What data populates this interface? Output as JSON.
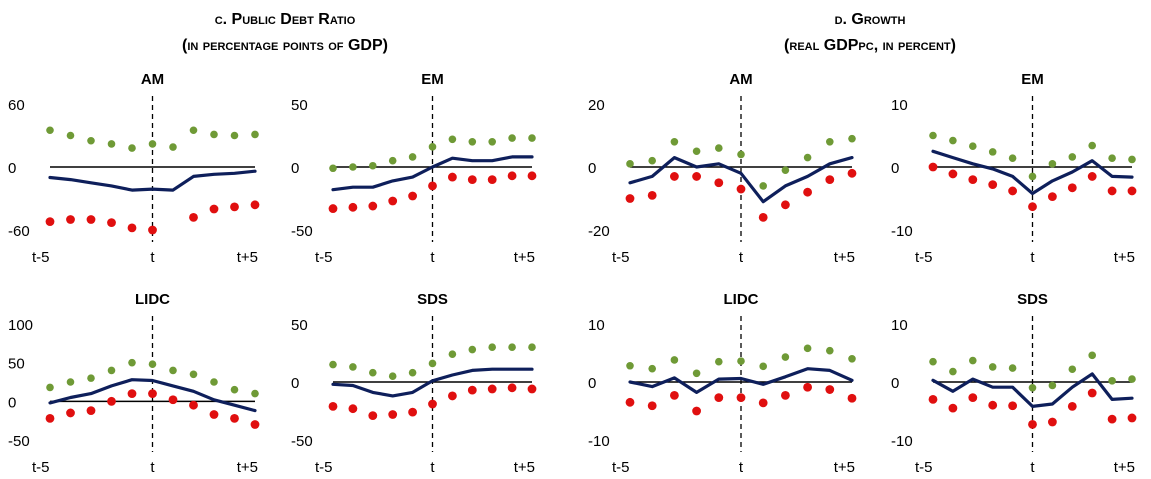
{
  "panels": [
    {
      "title_line1": "c. Public Debt Ratio",
      "title_line2": "(in percentage points of GDP)"
    },
    {
      "title_line1": "d. Growth",
      "title_line2": "(real GDPpc, in percent)"
    }
  ],
  "colors": {
    "line": "#0e1f5b",
    "upper": "#6f9a36",
    "lower": "#e00f0f",
    "axis": "#000000"
  },
  "chart_data": [
    {
      "type": "line",
      "panel": "c",
      "title": "AM",
      "x": [
        "t-5",
        "t-4",
        "t-3",
        "t-2",
        "t-1",
        "t",
        "t+1",
        "t+2",
        "t+3",
        "t+4",
        "t+5"
      ],
      "xticks": [
        "t-5",
        "t",
        "t+5"
      ],
      "yticks": [
        60,
        0,
        -60
      ],
      "ylim": [
        -60,
        60
      ],
      "series": [
        {
          "role": "line",
          "values": [
            -10,
            -12,
            -15,
            -18,
            -22,
            -21,
            -22,
            -9,
            -7,
            -6,
            -4
          ]
        },
        {
          "role": "upper",
          "values": [
            35,
            30,
            25,
            22,
            18,
            22,
            19,
            35,
            31,
            30,
            31
          ]
        },
        {
          "role": "lower",
          "values": [
            -52,
            -50,
            -50,
            -53,
            -58,
            -60,
            null,
            -48,
            -40,
            -38,
            -36
          ]
        }
      ]
    },
    {
      "type": "line",
      "panel": "c",
      "title": "EM",
      "x": [
        "t-5",
        "t-4",
        "t-3",
        "t-2",
        "t-1",
        "t",
        "t+1",
        "t+2",
        "t+3",
        "t+4",
        "t+5"
      ],
      "xticks": [
        "t-5",
        "t",
        "t+5"
      ],
      "yticks": [
        50,
        0,
        -50
      ],
      "ylim": [
        -50,
        50
      ],
      "series": [
        {
          "role": "line",
          "values": [
            -18,
            -16,
            -16,
            -11,
            -8,
            0,
            7,
            5,
            5,
            8,
            8
          ]
        },
        {
          "role": "upper",
          "values": [
            -1,
            0,
            1,
            5,
            8,
            16,
            22,
            20,
            20,
            23,
            23
          ]
        },
        {
          "role": "lower",
          "values": [
            -33,
            -32,
            -31,
            -27,
            -23,
            -15,
            -8,
            -10,
            -10,
            -7,
            -7
          ]
        }
      ]
    },
    {
      "type": "line",
      "panel": "c",
      "title": "LIDC",
      "x": [
        "t-5",
        "t-4",
        "t-3",
        "t-2",
        "t-1",
        "t",
        "t+1",
        "t+2",
        "t+3",
        "t+4",
        "t+5"
      ],
      "xticks": [
        "t-5",
        "t",
        "t+5"
      ],
      "yticks": [
        100,
        50,
        0,
        -50
      ],
      "ylim": [
        -50,
        100
      ],
      "series": [
        {
          "role": "line",
          "values": [
            -2,
            5,
            10,
            20,
            28,
            27,
            20,
            13,
            2,
            -5,
            -12
          ]
        },
        {
          "role": "upper",
          "values": [
            18,
            25,
            30,
            40,
            50,
            48,
            40,
            35,
            25,
            15,
            10
          ]
        },
        {
          "role": "lower",
          "values": [
            -22,
            -15,
            -12,
            0,
            10,
            10,
            2,
            -5,
            -17,
            -22,
            -30
          ]
        }
      ]
    },
    {
      "type": "line",
      "panel": "c",
      "title": "SDS",
      "x": [
        "t-5",
        "t-4",
        "t-3",
        "t-2",
        "t-1",
        "t",
        "t+1",
        "t+2",
        "t+3",
        "t+4",
        "t+5"
      ],
      "xticks": [
        "t-5",
        "t",
        "t+5"
      ],
      "yticks": [
        50,
        0,
        -50
      ],
      "ylim": [
        -50,
        50
      ],
      "series": [
        {
          "role": "line",
          "values": [
            -2,
            -3,
            -9,
            -12,
            -9,
            1,
            6,
            10,
            11,
            11,
            11
          ]
        },
        {
          "role": "upper",
          "values": [
            15,
            13,
            8,
            5,
            8,
            16,
            24,
            28,
            30,
            30,
            30
          ]
        },
        {
          "role": "lower",
          "values": [
            -21,
            -23,
            -29,
            -28,
            -26,
            -19,
            -12,
            -7,
            -6,
            -5,
            -6
          ]
        }
      ]
    },
    {
      "type": "line",
      "panel": "d",
      "title": "AM",
      "x": [
        "t-5",
        "t-4",
        "t-3",
        "t-2",
        "t-1",
        "t",
        "t+1",
        "t+2",
        "t+3",
        "t+4",
        "t+5"
      ],
      "xticks": [
        "t-5",
        "t",
        "t+5"
      ],
      "yticks": [
        20,
        0,
        -20
      ],
      "ylim": [
        -20,
        20
      ],
      "series": [
        {
          "role": "line",
          "values": [
            -5,
            -3,
            3,
            0,
            1,
            -2,
            -11,
            -6,
            -3,
            1,
            3
          ]
        },
        {
          "role": "upper",
          "values": [
            1,
            2,
            8,
            5,
            6,
            4,
            -6,
            -1,
            3,
            8,
            9
          ]
        },
        {
          "role": "lower",
          "values": [
            -10,
            -9,
            -3,
            -3,
            -5,
            -7,
            -16,
            -12,
            -8,
            -4,
            -2
          ]
        }
      ]
    },
    {
      "type": "line",
      "panel": "d",
      "title": "EM",
      "x": [
        "t-5",
        "t-4",
        "t-3",
        "t-2",
        "t-1",
        "t",
        "t+1",
        "t+2",
        "t+3",
        "t+4",
        "t+5"
      ],
      "xticks": [
        "t-5",
        "t",
        "t+5"
      ],
      "yticks": [
        10,
        0,
        -10
      ],
      "ylim": [
        -10,
        10
      ],
      "series": [
        {
          "role": "line",
          "values": [
            2.5,
            1.5,
            0.5,
            -0.3,
            -1.5,
            -4.2,
            -2.2,
            -0.8,
            1,
            -1.5,
            -1.6
          ]
        },
        {
          "role": "upper",
          "values": [
            5,
            4.2,
            3.3,
            2.4,
            1.4,
            -1.5,
            0.5,
            1.6,
            3.4,
            1.4,
            1.2
          ]
        },
        {
          "role": "lower",
          "values": [
            0,
            -1.1,
            -2,
            -2.8,
            -3.8,
            -6.3,
            -4.7,
            -3.3,
            -1.5,
            -3.8,
            -3.8
          ]
        }
      ]
    },
    {
      "type": "line",
      "panel": "d",
      "title": "LIDC",
      "x": [
        "t-5",
        "t-4",
        "t-3",
        "t-2",
        "t-1",
        "t",
        "t+1",
        "t+2",
        "t+3",
        "t+4",
        "t+5"
      ],
      "xticks": [
        "t-5",
        "t",
        "t+5"
      ],
      "yticks": [
        10,
        0,
        -10
      ],
      "ylim": [
        -10,
        10
      ],
      "series": [
        {
          "role": "line",
          "values": [
            0,
            -0.8,
            0.7,
            -1.8,
            0.5,
            0.6,
            -0.4,
            0.9,
            2.3,
            2,
            0.3
          ]
        },
        {
          "role": "upper",
          "values": [
            2.8,
            2.3,
            3.8,
            1.5,
            3.5,
            3.6,
            2.7,
            4.3,
            5.8,
            5.4,
            4
          ]
        },
        {
          "role": "lower",
          "values": [
            -3.5,
            -4.1,
            -2.3,
            -5,
            -2.7,
            -2.7,
            -3.6,
            -2.3,
            -0.9,
            -1.3,
            -2.8
          ]
        }
      ]
    },
    {
      "type": "line",
      "panel": "d",
      "title": "SDS",
      "x": [
        "t-5",
        "t-4",
        "t-3",
        "t-2",
        "t-1",
        "t",
        "t+1",
        "t+2",
        "t+3",
        "t+4",
        "t+5"
      ],
      "xticks": [
        "t-5",
        "t",
        "t+5"
      ],
      "yticks": [
        10,
        0,
        -10
      ],
      "ylim": [
        -10,
        10
      ],
      "series": [
        {
          "role": "line",
          "values": [
            0.3,
            -1.6,
            0.5,
            -0.9,
            -0.9,
            -4.2,
            -3.8,
            -0.9,
            1.4,
            -3,
            -2.8
          ]
        },
        {
          "role": "upper",
          "values": [
            3.5,
            1.8,
            3.7,
            2.6,
            2.4,
            -1,
            -0.6,
            2.2,
            4.6,
            0.2,
            0.5
          ]
        },
        {
          "role": "lower",
          "values": [
            -3,
            -4.5,
            -2.7,
            -4,
            -4.1,
            -7.3,
            -6.9,
            -4.2,
            -1.9,
            -6.4,
            -6.2
          ]
        }
      ]
    }
  ]
}
